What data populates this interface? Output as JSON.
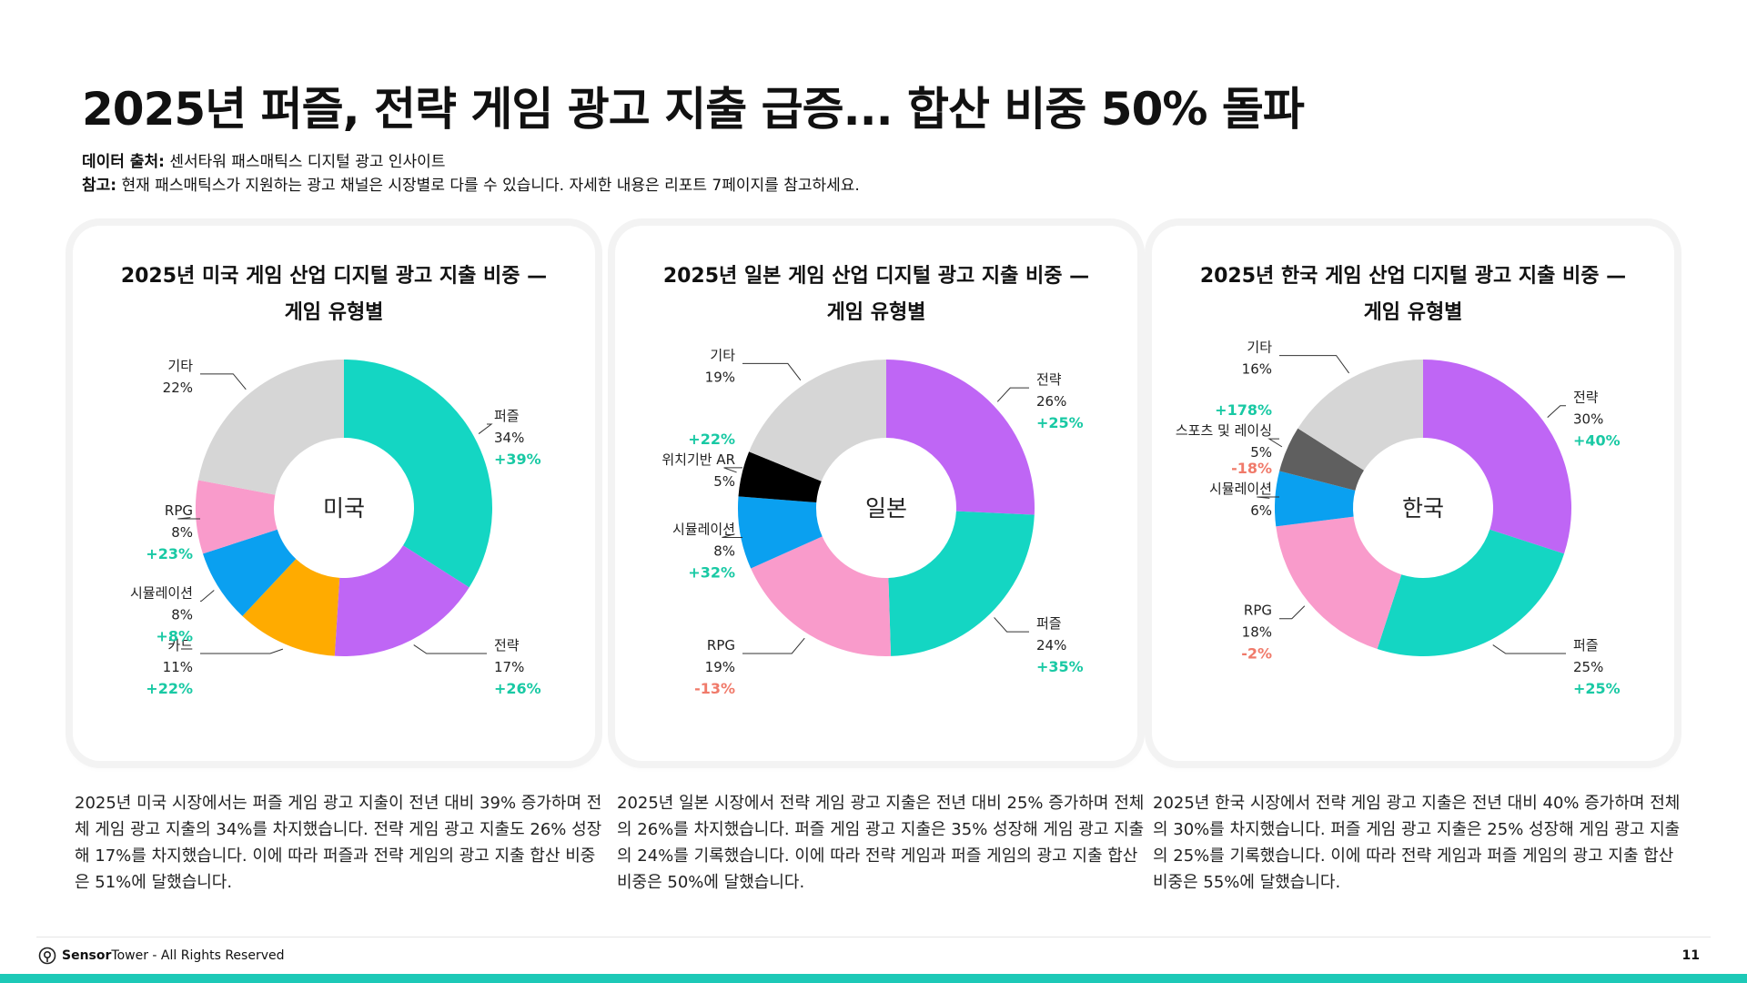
{
  "page": {
    "title": "2025년 퍼즐, 전략 게임 광고 지출 급증... 합산 비중 50% 돌파",
    "source_label": "데이터 출처:",
    "source_text": " 센서타워 패스매틱스 디지털 광고 인사이트",
    "note_label": "참고:",
    "note_text": " 현재 패스매틱스가 지원하는 광고 채널은 시장별로 다를 수 있습니다. 자세한 내용은 리포트 7페이지를 참고하세요.",
    "footer_brand_bold": "Sensor",
    "footer_brand": "Tower",
    "footer_rights": " - All Rights Reserved",
    "page_number": "11"
  },
  "colors": {
    "positive": "#19c9a4",
    "negative": "#f07a6a",
    "accent_bar": "#1dc9b7"
  },
  "descriptions": [
    "2025년 미국 시장에서는 퍼즐 게임 광고 지출이 전년 대비 39% 증가하며 전체 게임 광고 지출의 34%를 차지했습니다. 전략 게임 광고 지출도 26% 성장해 17%를 차지했습니다. 이에 따라 퍼즐과 전략 게임의 광고 지출 합산 비중은 51%에 달했습니다.",
    "2025년 일본 시장에서 전략 게임 광고 지출은 전년 대비 25% 증가하며 전체의 26%를 차지했습니다. 퍼즐 게임 광고 지출은 35% 성장해 게임 광고 지출의 24%를 기록했습니다. 이에 따라 전략 게임과 퍼즐 게임의 광고 지출 합산 비중은 50%에 달했습니다.",
    "2025년 한국 시장에서 전략 게임 광고 지출은 전년 대비 40% 증가하며 전체의 30%를 차지했습니다. 퍼즐 게임 광고 지출은 25% 성장해 게임 광고 지출의 25%를 기록했습니다. 이에 따라 전략 게임과 퍼즐 게임의 광고 지출 합산 비중은 55%에 달했습니다."
  ],
  "chart_data": [
    {
      "type": "pie",
      "title": "2025년 미국 게임 산업 디지털 광고 지출 비중 — 게임 유형별",
      "title_lines": [
        "2025년 미국 게임 산업 디지털 광고 지출 비중 —",
        "게임 유형별"
      ],
      "center_label": "미국",
      "slices": [
        {
          "name": "퍼즐",
          "value": 34,
          "label": "34%",
          "growth": "+39%",
          "color": "#14d6c3"
        },
        {
          "name": "전략",
          "value": 17,
          "label": "17%",
          "growth": "+26%",
          "color": "#bf66f5"
        },
        {
          "name": "카드",
          "value": 11,
          "label": "11%",
          "growth": "+22%",
          "color": "#ffab00"
        },
        {
          "name": "시뮬레이션",
          "value": 8,
          "label": "8%",
          "growth": "+8%",
          "color": "#0aa0f0"
        },
        {
          "name": "RPG",
          "value": 8,
          "label": "8%",
          "growth": "+23%",
          "color": "#f99bcb"
        },
        {
          "name": "기타",
          "value": 22,
          "label": "22%",
          "growth": "",
          "color": "#d6d6d6"
        }
      ]
    },
    {
      "type": "pie",
      "title": "2025년 일본 게임 산업 디지털 광고 지출 비중 — 게임 유형별",
      "title_lines": [
        "2025년 일본 게임 산업 디지털 광고 지출 비중 —",
        "게임 유형별"
      ],
      "center_label": "일본",
      "slices": [
        {
          "name": "전략",
          "value": 26,
          "label": "26%",
          "growth": "+25%",
          "color": "#bf66f5"
        },
        {
          "name": "퍼즐",
          "value": 24,
          "label": "24%",
          "growth": "+35%",
          "color": "#14d6c3"
        },
        {
          "name": "RPG",
          "value": 19,
          "label": "19%",
          "growth": "-13%",
          "color": "#f99bcb"
        },
        {
          "name": "시뮬레이션",
          "value": 8,
          "label": "8%",
          "growth": "+32%",
          "color": "#0aa0f0"
        },
        {
          "name": "위치기반 AR",
          "value": 5,
          "label": "5%",
          "growth": "+22%",
          "color": "#000000"
        },
        {
          "name": "기타",
          "value": 19,
          "label": "19%",
          "growth": "",
          "color": "#d6d6d6"
        }
      ]
    },
    {
      "type": "pie",
      "title": "2025년 한국 게임 산업 디지털 광고 지출 비중 — 게임 유형별",
      "title_lines": [
        "2025년 한국 게임 산업 디지털 광고 지출 비중 —",
        "게임 유형별"
      ],
      "center_label": "한국",
      "slices": [
        {
          "name": "전략",
          "value": 30,
          "label": "30%",
          "growth": "+40%",
          "color": "#bf66f5"
        },
        {
          "name": "퍼즐",
          "value": 25,
          "label": "25%",
          "growth": "+25%",
          "color": "#14d6c3"
        },
        {
          "name": "RPG",
          "value": 18,
          "label": "18%",
          "growth": "-2%",
          "color": "#f99bcb"
        },
        {
          "name": "시뮬레이션",
          "value": 6,
          "label": "6%",
          "growth": "-18%",
          "color": "#0aa0f0"
        },
        {
          "name": "스포츠 및 레이싱",
          "value": 5,
          "label": "5%",
          "growth": "+178%",
          "color": "#5f5f5f"
        },
        {
          "name": "기타",
          "value": 16,
          "label": "16%",
          "growth": "",
          "color": "#d6d6d6"
        }
      ]
    }
  ]
}
